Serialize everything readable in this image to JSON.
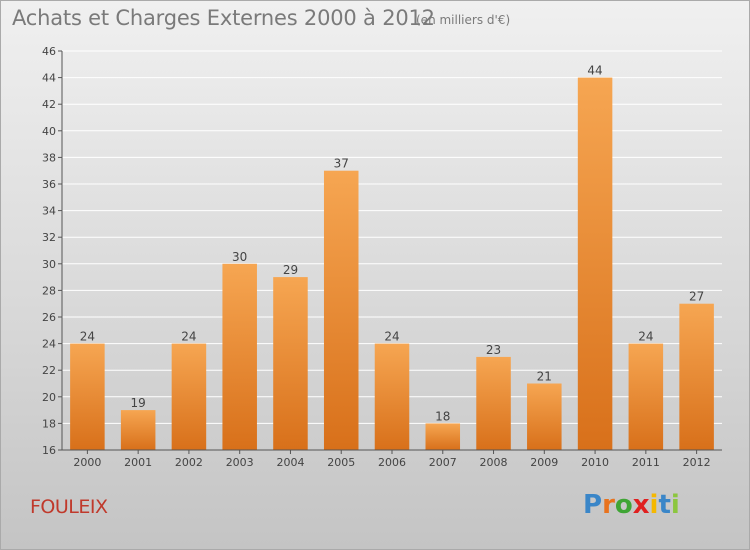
{
  "header": {
    "title": "Achats et Charges Externes 2000 à 2012",
    "unit": "(en milliers d'€)"
  },
  "footer": {
    "commune": "FOULEIX",
    "logo_letters": [
      "P",
      "r",
      "o",
      "x",
      "i",
      "t",
      "i"
    ],
    "logo_colors": [
      "#3a86c8",
      "#e8731e",
      "#3fa535",
      "#e02020",
      "#f5b800",
      "#3a86c8",
      "#8cc63f"
    ]
  },
  "colors": {
    "bar_top": "#f6a652",
    "bar_bottom": "#d8701a",
    "grid": "#ffffff",
    "axis": "#555555"
  },
  "chart_data": {
    "type": "bar",
    "title": "Achats et Charges Externes 2000 à 2012",
    "subtitle": "(en milliers d'€)",
    "categories": [
      "2000",
      "2001",
      "2002",
      "2003",
      "2004",
      "2005",
      "2006",
      "2007",
      "2008",
      "2009",
      "2010",
      "2011",
      "2012"
    ],
    "values": [
      24,
      19,
      24,
      30,
      29,
      37,
      24,
      18,
      23,
      21,
      44,
      24,
      27
    ],
    "ylim": [
      16,
      46
    ],
    "yticks": [
      16,
      18,
      20,
      22,
      24,
      26,
      28,
      30,
      32,
      34,
      36,
      38,
      40,
      42,
      44,
      46
    ],
    "grid": true,
    "data_labels": true,
    "xlabel": "",
    "ylabel": ""
  }
}
